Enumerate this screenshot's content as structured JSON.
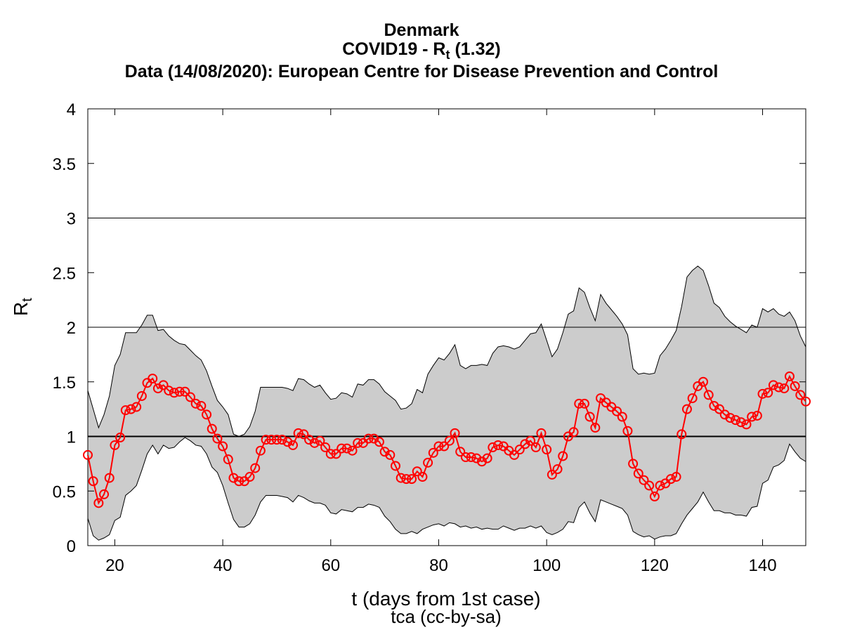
{
  "title": {
    "country": "Denmark",
    "metric_prefix": "COVID19 - R",
    "metric_sub": "t",
    "metric_suffix": " (1.32)",
    "source": "Data (14/08/2020): European Centre for Disease Prevention and Control"
  },
  "axes": {
    "xlabel": "t (days from 1st case)",
    "credit": "tca (cc-by-sa)",
    "ylabel_main": "R",
    "ylabel_sub": "t"
  },
  "colors": {
    "line": "#ff0000",
    "band": "#cccccc",
    "reference_line": "#000000"
  },
  "chart_data": {
    "type": "line",
    "title": "Denmark / COVID19 - Rt (1.32) / Data (14/08/2020): European Centre for Disease Prevention and Control",
    "xlabel": "t (days from 1st case)",
    "ylabel": "Rt",
    "xlim": [
      15,
      148
    ],
    "ylim": [
      0,
      4
    ],
    "xticks": [
      20,
      40,
      60,
      80,
      100,
      120,
      140
    ],
    "yticks": [
      0,
      0.5,
      1,
      1.5,
      2,
      2.5,
      3,
      3.5,
      4
    ],
    "ytick_labels": [
      "0",
      "0.5",
      "1",
      "1.5",
      "2",
      "2.5",
      "3",
      "3.5",
      "4"
    ],
    "reference_lines": [
      {
        "y": 1,
        "style": "thick"
      },
      {
        "y": 2,
        "style": "thin"
      },
      {
        "y": 3,
        "style": "thin"
      }
    ],
    "grid": false,
    "series": [
      {
        "type": "line",
        "marker": "circle",
        "x": [
          15,
          16,
          17,
          18,
          19,
          20,
          21,
          22,
          23,
          24,
          25,
          26,
          27,
          28,
          29,
          30,
          31,
          32,
          33,
          34,
          35,
          36,
          37,
          38,
          39,
          40,
          41,
          42,
          43,
          44,
          45,
          46,
          47,
          48,
          49,
          50,
          51,
          52,
          53,
          54,
          55,
          56,
          57,
          58,
          59,
          60,
          61,
          62,
          63,
          64,
          65,
          66,
          67,
          68,
          69,
          70,
          71,
          72,
          73,
          74,
          75,
          76,
          77,
          78,
          79,
          80,
          81,
          82,
          83,
          84,
          85,
          86,
          87,
          88,
          89,
          90,
          91,
          92,
          93,
          94,
          95,
          96,
          97,
          98,
          99,
          100,
          101,
          102,
          103,
          104,
          105,
          106,
          107,
          108,
          109,
          110,
          111,
          112,
          113,
          114,
          115,
          116,
          117,
          118,
          119,
          120,
          121,
          122,
          123,
          124,
          125,
          126,
          127,
          128,
          129,
          130,
          131,
          132,
          133,
          134,
          135,
          136,
          137,
          138,
          139,
          140,
          141,
          142,
          143,
          144,
          145,
          146,
          147,
          148
        ],
        "values": [
          0.83,
          0.59,
          0.39,
          0.47,
          0.62,
          0.92,
          0.99,
          1.24,
          1.25,
          1.27,
          1.37,
          1.49,
          1.53,
          1.44,
          1.47,
          1.42,
          1.4,
          1.41,
          1.41,
          1.36,
          1.3,
          1.28,
          1.2,
          1.07,
          0.98,
          0.91,
          0.79,
          0.62,
          0.59,
          0.59,
          0.63,
          0.71,
          0.87,
          0.97,
          0.97,
          0.97,
          0.97,
          0.95,
          0.92,
          1.03,
          1.02,
          0.97,
          0.94,
          0.96,
          0.9,
          0.84,
          0.84,
          0.89,
          0.89,
          0.87,
          0.94,
          0.94,
          0.98,
          0.98,
          0.95,
          0.86,
          0.83,
          0.73,
          0.62,
          0.61,
          0.61,
          0.68,
          0.63,
          0.76,
          0.85,
          0.91,
          0.91,
          0.96,
          1.03,
          0.86,
          0.81,
          0.81,
          0.8,
          0.77,
          0.8,
          0.9,
          0.92,
          0.91,
          0.87,
          0.83,
          0.88,
          0.93,
          0.96,
          0.9,
          1.03,
          0.88,
          0.65,
          0.7,
          0.82,
          1.0,
          1.04,
          1.3,
          1.3,
          1.18,
          1.08,
          1.35,
          1.31,
          1.27,
          1.23,
          1.18,
          1.05,
          0.75,
          0.66,
          0.6,
          0.55,
          0.45,
          0.55,
          0.57,
          0.61,
          0.63,
          1.02,
          1.25,
          1.35,
          1.46,
          1.5,
          1.38,
          1.28,
          1.25,
          1.2,
          1.17,
          1.15,
          1.13,
          1.11,
          1.18,
          1.19,
          1.39,
          1.4,
          1.47,
          1.45,
          1.44,
          1.55,
          1.46,
          1.38,
          1.32
        ]
      },
      {
        "type": "area",
        "x": [
          15,
          16,
          17,
          18,
          19,
          20,
          21,
          22,
          23,
          24,
          25,
          26,
          27,
          28,
          29,
          30,
          31,
          32,
          33,
          34,
          35,
          36,
          37,
          38,
          39,
          40,
          41,
          42,
          43,
          44,
          45,
          46,
          47,
          48,
          49,
          50,
          51,
          52,
          53,
          54,
          55,
          56,
          57,
          58,
          59,
          60,
          61,
          62,
          63,
          64,
          65,
          66,
          67,
          68,
          69,
          70,
          71,
          72,
          73,
          74,
          75,
          76,
          77,
          78,
          79,
          80,
          81,
          82,
          83,
          84,
          85,
          86,
          87,
          88,
          89,
          90,
          91,
          92,
          93,
          94,
          95,
          96,
          97,
          98,
          99,
          100,
          101,
          102,
          103,
          104,
          105,
          106,
          107,
          108,
          109,
          110,
          111,
          112,
          113,
          114,
          115,
          116,
          117,
          118,
          119,
          120,
          121,
          122,
          123,
          124,
          125,
          126,
          127,
          128,
          129,
          130,
          131,
          132,
          133,
          134,
          135,
          136,
          137,
          138,
          139,
          140,
          141,
          142,
          143,
          144,
          145,
          146,
          147,
          148
        ],
        "upper": [
          1.42,
          1.25,
          1.08,
          1.2,
          1.37,
          1.65,
          1.75,
          1.95,
          1.95,
          1.95,
          2.02,
          2.11,
          2.11,
          1.97,
          1.98,
          1.92,
          1.88,
          1.85,
          1.84,
          1.79,
          1.74,
          1.7,
          1.6,
          1.46,
          1.33,
          1.27,
          1.2,
          1.02,
          1.0,
          1.02,
          1.09,
          1.23,
          1.45,
          1.45,
          1.45,
          1.45,
          1.45,
          1.44,
          1.42,
          1.53,
          1.52,
          1.48,
          1.45,
          1.47,
          1.4,
          1.34,
          1.35,
          1.4,
          1.39,
          1.36,
          1.48,
          1.47,
          1.52,
          1.52,
          1.48,
          1.41,
          1.37,
          1.33,
          1.25,
          1.26,
          1.3,
          1.43,
          1.4,
          1.57,
          1.65,
          1.72,
          1.7,
          1.76,
          1.84,
          1.65,
          1.62,
          1.65,
          1.65,
          1.66,
          1.65,
          1.76,
          1.82,
          1.83,
          1.82,
          1.8,
          1.82,
          1.88,
          1.94,
          1.95,
          2.03,
          1.88,
          1.73,
          1.8,
          1.95,
          2.12,
          2.15,
          2.36,
          2.32,
          2.18,
          2.06,
          2.3,
          2.22,
          2.16,
          2.1,
          2.03,
          1.93,
          1.62,
          1.57,
          1.58,
          1.57,
          1.58,
          1.74,
          1.8,
          1.88,
          1.97,
          2.19,
          2.46,
          2.52,
          2.56,
          2.52,
          2.38,
          2.22,
          2.18,
          2.1,
          2.05,
          2.01,
          1.98,
          1.95,
          2.02,
          2.0,
          2.17,
          2.14,
          2.17,
          2.12,
          2.1,
          2.14,
          2.06,
          1.92,
          1.82
        ],
        "lower": [
          0.25,
          0.09,
          0.05,
          0.07,
          0.1,
          0.23,
          0.26,
          0.46,
          0.5,
          0.55,
          0.69,
          0.84,
          0.92,
          0.84,
          0.92,
          0.89,
          0.9,
          0.95,
          0.99,
          0.96,
          0.92,
          0.91,
          0.84,
          0.72,
          0.67,
          0.55,
          0.39,
          0.24,
          0.17,
          0.17,
          0.2,
          0.28,
          0.4,
          0.46,
          0.46,
          0.46,
          0.45,
          0.44,
          0.4,
          0.46,
          0.44,
          0.41,
          0.39,
          0.39,
          0.37,
          0.3,
          0.29,
          0.33,
          0.32,
          0.31,
          0.35,
          0.35,
          0.38,
          0.37,
          0.35,
          0.27,
          0.22,
          0.15,
          0.11,
          0.11,
          0.13,
          0.11,
          0.15,
          0.17,
          0.19,
          0.2,
          0.18,
          0.21,
          0.2,
          0.17,
          0.18,
          0.16,
          0.17,
          0.15,
          0.16,
          0.15,
          0.15,
          0.18,
          0.16,
          0.14,
          0.16,
          0.16,
          0.18,
          0.16,
          0.18,
          0.12,
          0.1,
          0.12,
          0.15,
          0.22,
          0.21,
          0.35,
          0.4,
          0.3,
          0.22,
          0.42,
          0.4,
          0.38,
          0.36,
          0.34,
          0.28,
          0.13,
          0.1,
          0.08,
          0.09,
          0.06,
          0.08,
          0.09,
          0.09,
          0.11,
          0.2,
          0.28,
          0.34,
          0.4,
          0.49,
          0.4,
          0.32,
          0.32,
          0.3,
          0.3,
          0.28,
          0.28,
          0.27,
          0.35,
          0.36,
          0.57,
          0.6,
          0.72,
          0.74,
          0.78,
          0.93,
          0.86,
          0.8,
          0.77
        ]
      }
    ]
  }
}
